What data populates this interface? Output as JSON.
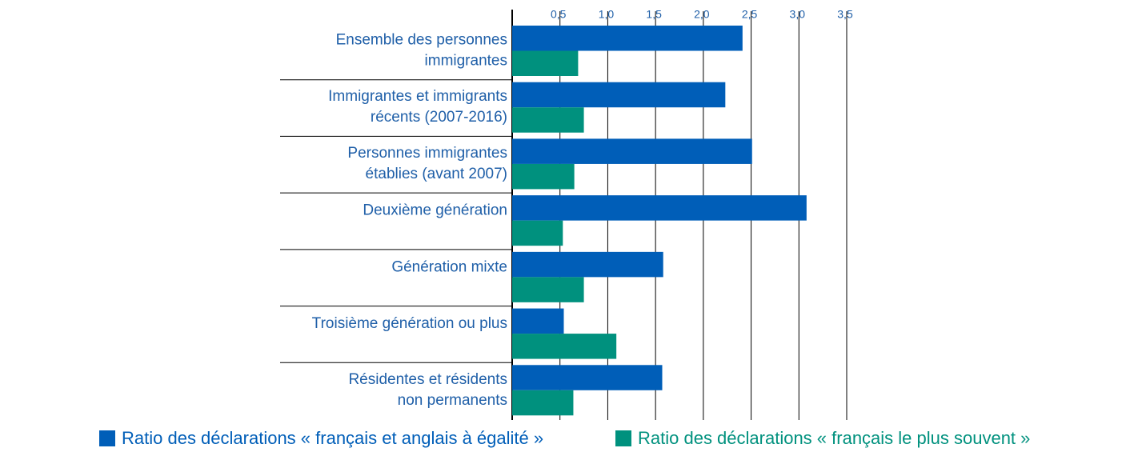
{
  "chart_data": {
    "type": "barh",
    "categories": [
      [
        "Ensemble des personnes",
        "immigrantes"
      ],
      [
        "Immigrantes et immigrants",
        "récents (2007-2016)"
      ],
      [
        "Personnes immigrantes",
        "établies (avant 2007)"
      ],
      [
        "Deuxième génération"
      ],
      [
        "Génération mixte"
      ],
      [
        "Troisième génération ou plus"
      ],
      [
        "Résidentes et résidents",
        "non permanents"
      ]
    ],
    "series": [
      {
        "name": "Ratio des déclarations « français et anglais à égalité »",
        "color": "#005eb8",
        "values": [
          2.41,
          2.23,
          2.51,
          3.08,
          1.58,
          0.54,
          1.57
        ]
      },
      {
        "name": "Ratio des déclarations « français le plus souvent »",
        "color": "#00917e",
        "values": [
          0.69,
          0.75,
          0.65,
          0.53,
          0.75,
          1.09,
          0.64
        ]
      }
    ],
    "xlim": [
      0,
      3.5
    ],
    "xticks": [
      {
        "value": 0.5,
        "label": "0,5"
      },
      {
        "value": 1.0,
        "label": "1,0"
      },
      {
        "value": 1.5,
        "label": "1,5"
      },
      {
        "value": 2.0,
        "label": "2,0"
      },
      {
        "value": 2.5,
        "label": "2,5"
      },
      {
        "value": 3.0,
        "label": "3,0"
      },
      {
        "value": 3.5,
        "label": "3,5"
      }
    ],
    "grid": true
  }
}
